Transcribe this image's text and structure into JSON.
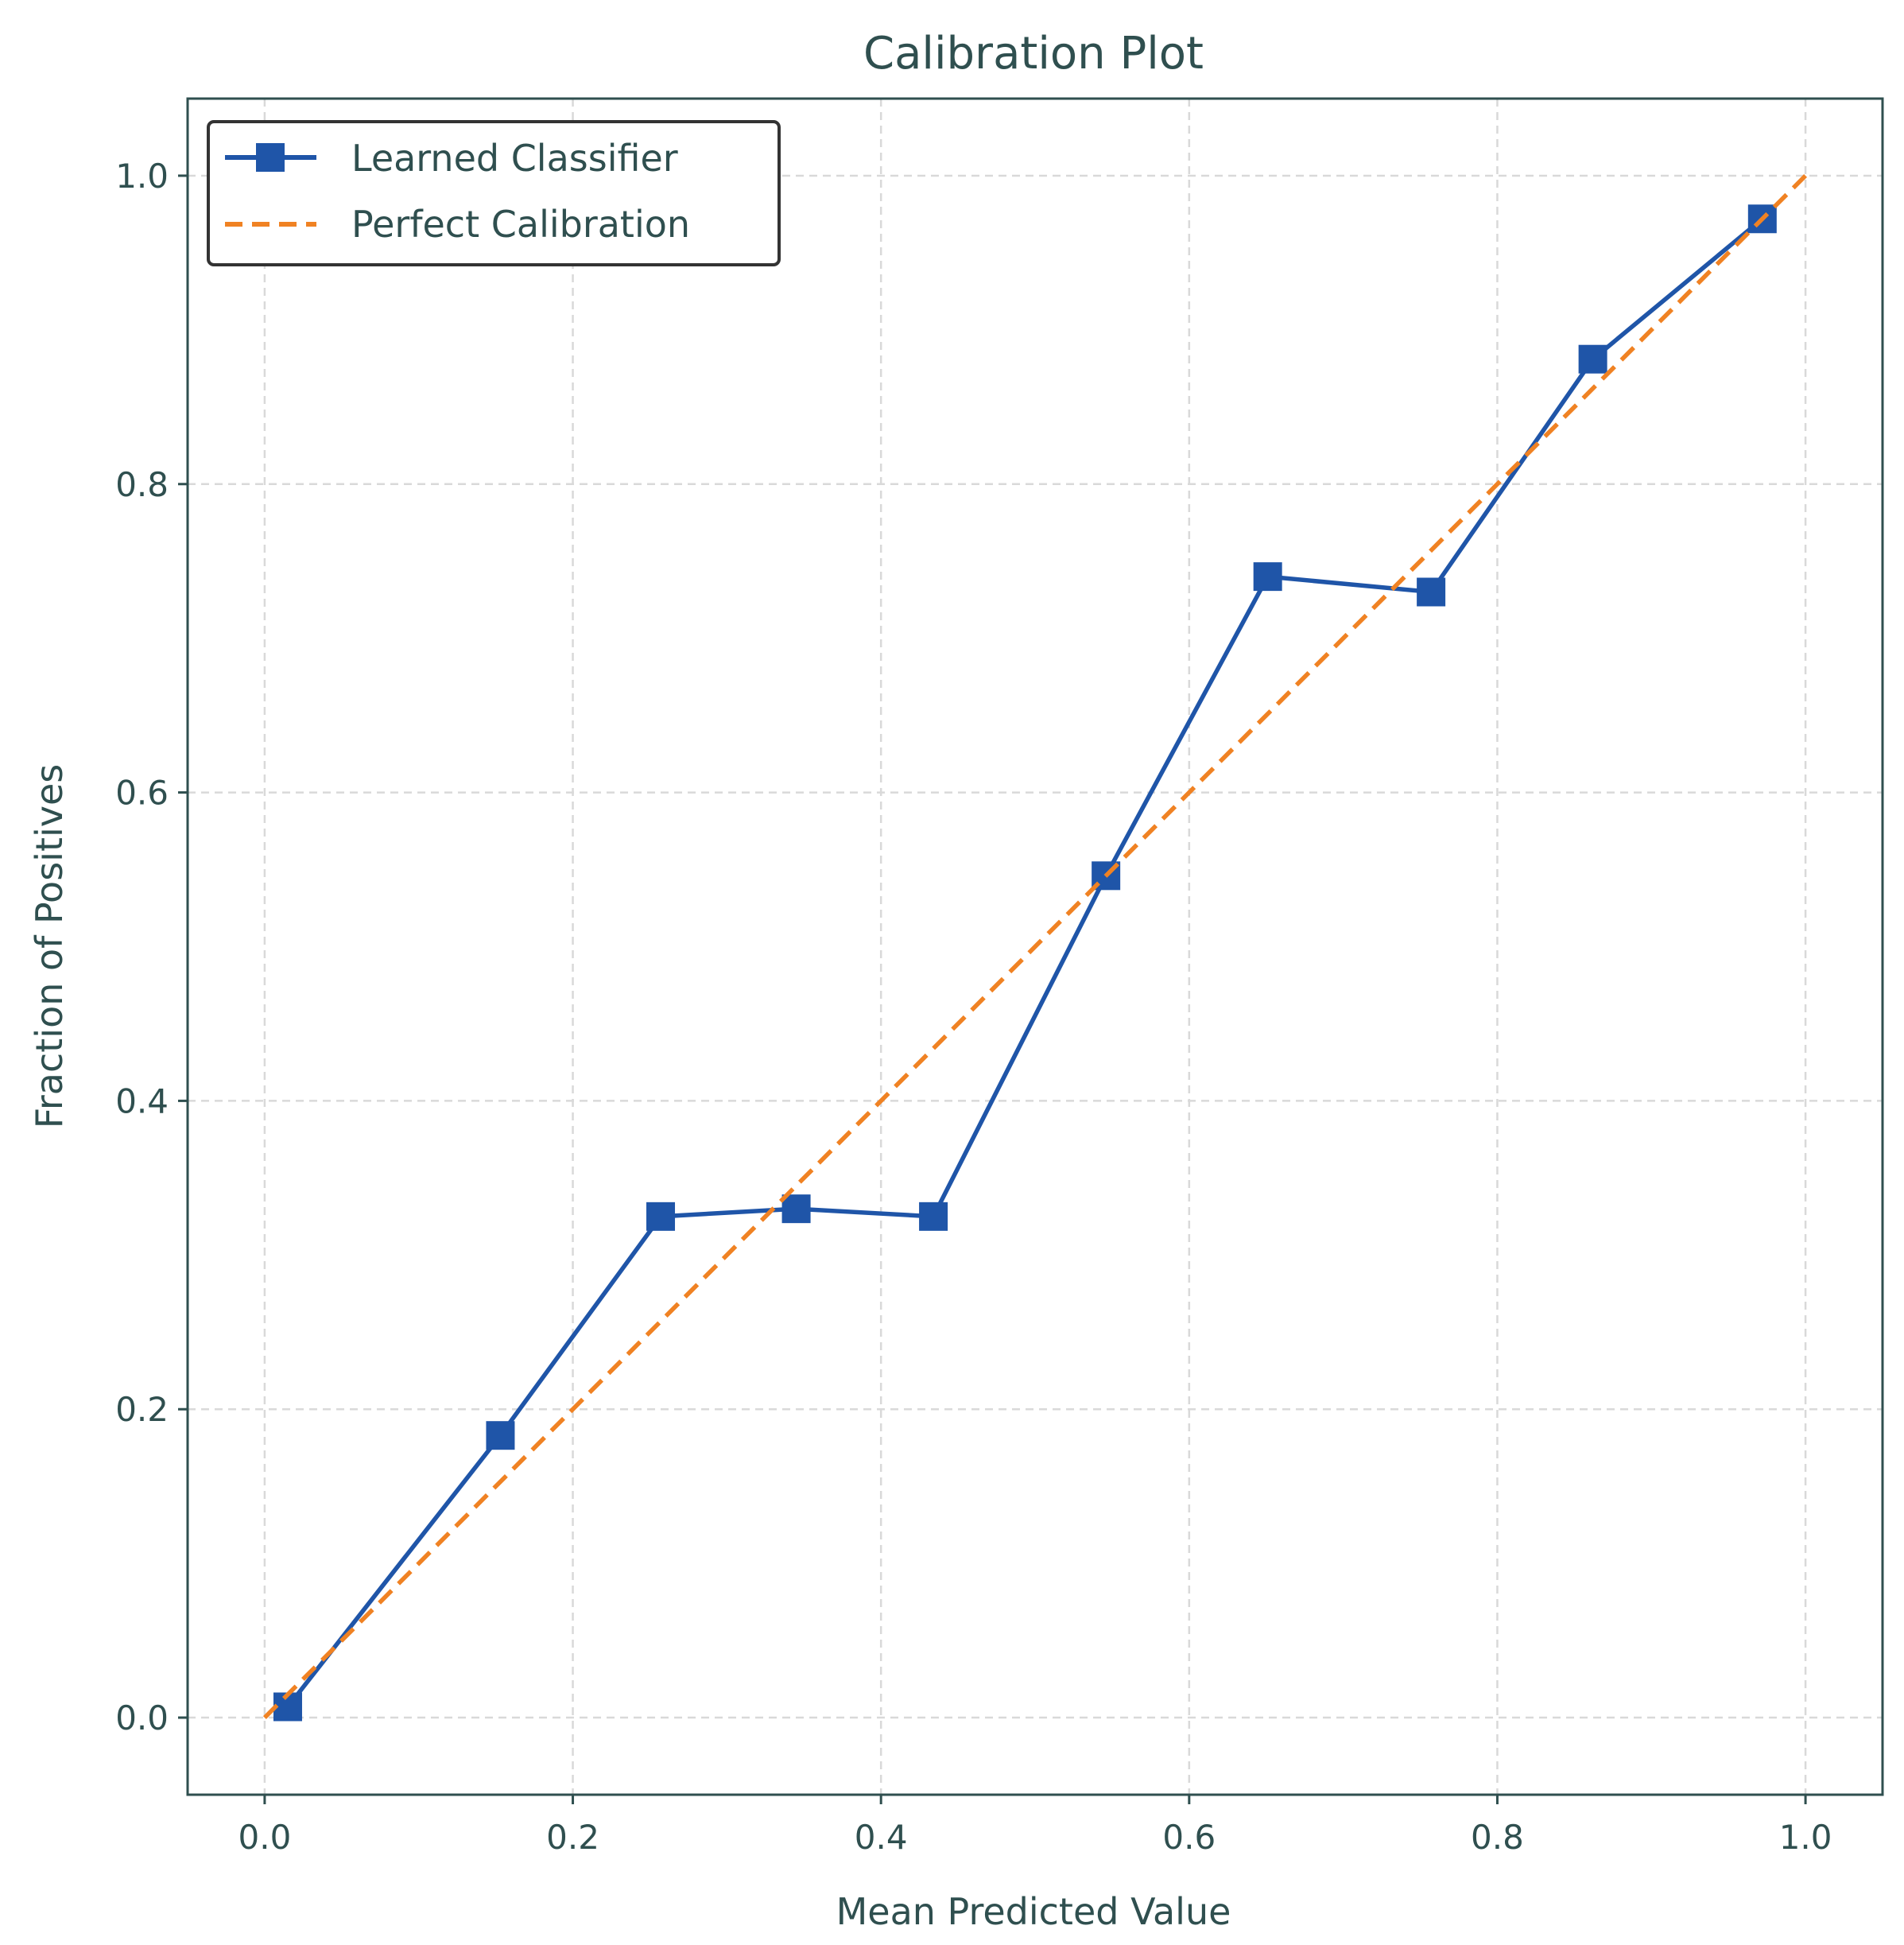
{
  "chart_data": {
    "type": "line",
    "title": "Calibration Plot",
    "xlabel": "Mean Predicted Value",
    "ylabel": "Fraction of Positives",
    "xlim": [
      -0.05,
      1.05
    ],
    "ylim": [
      -0.05,
      1.05
    ],
    "grid": true,
    "legend_position": "top-left",
    "x_ticks": [
      "0.0",
      "0.2",
      "0.4",
      "0.6",
      "0.8",
      "1.0"
    ],
    "y_ticks": [
      "0.0",
      "0.2",
      "0.4",
      "0.6",
      "0.8",
      "1.0"
    ],
    "x_tick_values": [
      0.0,
      0.2,
      0.4,
      0.6,
      0.8,
      1.0
    ],
    "y_tick_values": [
      0.0,
      0.2,
      0.4,
      0.6,
      0.8,
      1.0
    ],
    "series": [
      {
        "name": "Learned Classifier",
        "style": "solid-square-markers",
        "color": "#1f55a8",
        "x": [
          0.015,
          0.153,
          0.257,
          0.345,
          0.434,
          0.546,
          0.651,
          0.757,
          0.862,
          0.972
        ],
        "y": [
          0.007,
          0.183,
          0.325,
          0.33,
          0.325,
          0.546,
          0.74,
          0.73,
          0.881,
          0.972
        ]
      },
      {
        "name": "Perfect Calibration",
        "style": "dashed",
        "color": "#f08223",
        "x": [
          0.0,
          1.0
        ],
        "y": [
          0.0,
          1.0
        ]
      }
    ],
    "colors": {
      "axes": "#2f4f4f",
      "grid": "#d9d9d9",
      "legend_border": "#333333"
    }
  }
}
